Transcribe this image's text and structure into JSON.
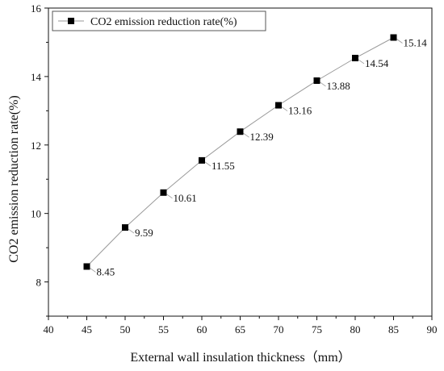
{
  "chart_data": {
    "type": "line",
    "xlabel": "External wall insulation thickness（mm）",
    "ylabel": "CO2 emission reduction rate(%)",
    "xlim": [
      40,
      90
    ],
    "ylim": [
      7,
      16
    ],
    "xticks": [
      40,
      45,
      50,
      55,
      60,
      65,
      70,
      75,
      80,
      85,
      90
    ],
    "yticks": [
      8,
      10,
      12,
      14,
      16
    ],
    "grid": false,
    "legend_position": "top-left",
    "series": [
      {
        "name": "CO2 emission reduction rate(%)",
        "marker": "square",
        "color": "#000000",
        "line_color": "#9a9a9a",
        "x": [
          45,
          50,
          55,
          60,
          65,
          70,
          75,
          80,
          85
        ],
        "y": [
          8.45,
          9.59,
          10.61,
          11.55,
          12.39,
          13.16,
          13.88,
          14.54,
          15.14
        ],
        "labels": [
          "8.45",
          "9.59",
          "10.61",
          "11.55",
          "12.39",
          "13.16",
          "13.88",
          "14.54",
          "15.14"
        ]
      }
    ]
  }
}
